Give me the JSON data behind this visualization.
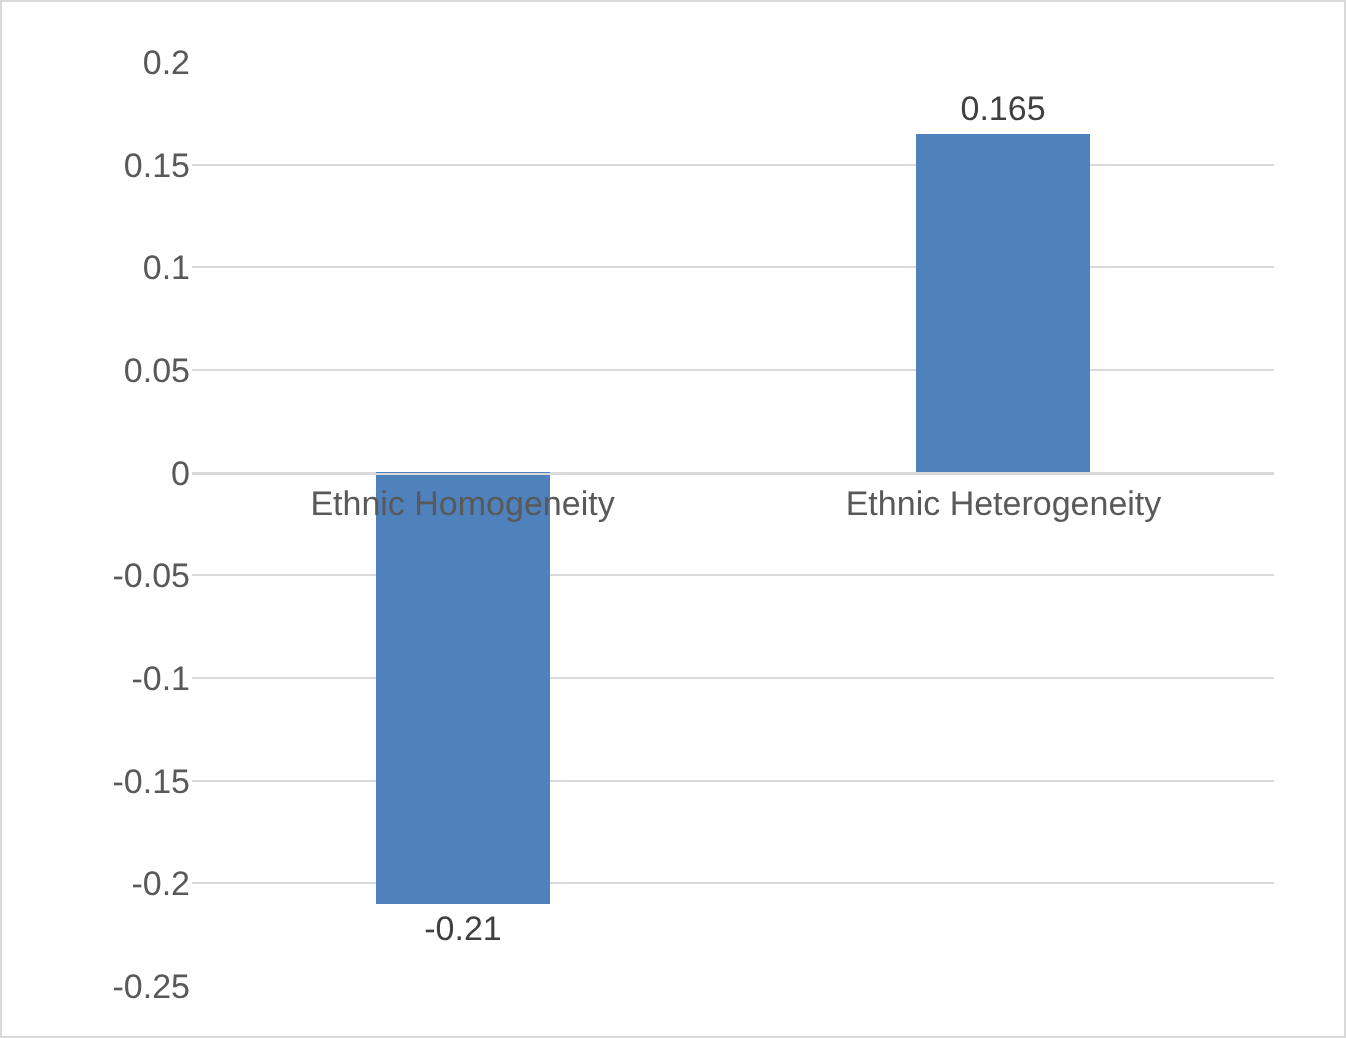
{
  "chart_data": {
    "type": "bar",
    "categories": [
      "Ethnic Homogeneity",
      "Ethnic Heterogeneity"
    ],
    "values": [
      -0.21,
      0.165
    ],
    "color": "#4f81bd",
    "ylim": [
      -0.25,
      0.2
    ],
    "yticks": [
      {
        "value": -0.25,
        "label": "-0.25"
      },
      {
        "value": -0.2,
        "label": "-0.2"
      },
      {
        "value": -0.15,
        "label": "-0.15"
      },
      {
        "value": -0.1,
        "label": "-0.1"
      },
      {
        "value": -0.05,
        "label": "-0.05"
      },
      0,
      0.05,
      0.1,
      0.15,
      0.2
    ],
    "grid": "y",
    "data_labels": true
  }
}
